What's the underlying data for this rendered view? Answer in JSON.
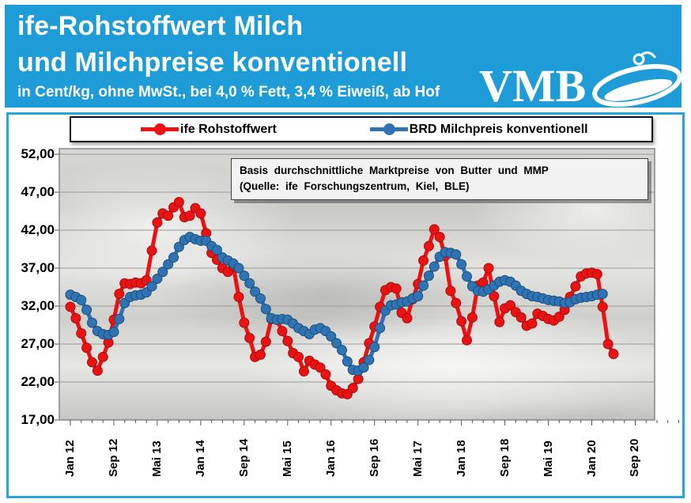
{
  "header": {
    "title_line1": "ife-Rohstoffwert Milch",
    "title_line2": "und Milchpreise konventionell",
    "subtitle": "in Cent/kg, ohne MwSt., bei 4,0 % Fett, 3,4 % Eiweiß, ab Hof",
    "logo_text": "VMB",
    "background_color": "#1E9CD8",
    "text_color": "#FFFFFF"
  },
  "legend": {
    "items": [
      {
        "label": "ife Rohstoffwert",
        "color": "#EE1111"
      },
      {
        "label": "BRD Milchpreis konventionell",
        "color": "#2E74B5"
      }
    ]
  },
  "annotation": {
    "line1": "Basis durchschnittliche Marktpreise von Butter und MMP",
    "line2": "(Quelle: ife Forschungszentrum, Kiel, BLE)"
  },
  "chart_data": {
    "type": "line",
    "title": "ife-Rohstoffwert Milch und Milchpreise konventionell",
    "unit": "Cent/kg",
    "x_start_month": "Jan 2012",
    "x_interval": "monthly",
    "x_tick_labels": [
      "Jan 12",
      "Sep 12",
      "Mai 13",
      "Jan 14",
      "Sep 14",
      "Mai 15",
      "Jan 16",
      "Sep 16",
      "Mai 17",
      "Jan 18",
      "Sep 18",
      "Mai 19",
      "Jan 20",
      "Sep 20"
    ],
    "x_tick_month_step": 8,
    "y_tick_labels": [
      "52,00",
      "47,00",
      "42,00",
      "37,00",
      "32,00",
      "27,00",
      "22,00",
      "17,00"
    ],
    "ylim": [
      17,
      52
    ],
    "grid": true,
    "legend_position": "top",
    "series": [
      {
        "name": "ife Rohstoffwert",
        "color": "#EE1111",
        "values": [
          31.9,
          30.4,
          28.4,
          26.5,
          24.6,
          23.5,
          25.3,
          27.2,
          30.2,
          33.6,
          35.0,
          34.9,
          35.1,
          35.0,
          35.4,
          39.3,
          43.0,
          44.2,
          43.9,
          45.0,
          45.7,
          43.7,
          43.9,
          44.9,
          44.2,
          41.6,
          39.0,
          38.1,
          37.0,
          36.5,
          37.3,
          33.2,
          29.8,
          27.8,
          25.3,
          25.6,
          27.3,
          30.3,
          30.2,
          28.7,
          27.4,
          25.8,
          25.3,
          23.4,
          24.8,
          24.3,
          23.9,
          23.0,
          21.5,
          20.9,
          20.5,
          20.4,
          21.2,
          22.4,
          24.6,
          27.1,
          29.3,
          31.9,
          34.1,
          34.5,
          34.3,
          31.1,
          30.4,
          32.9,
          34.9,
          38.0,
          39.9,
          42.1,
          41.1,
          38.6,
          34.0,
          32.4,
          30.0,
          27.5,
          30.5,
          34.7,
          35.1,
          37.0,
          33.3,
          29.9,
          31.7,
          32.1,
          31.2,
          30.5,
          29.4,
          29.7,
          31.0,
          30.7,
          30.3,
          30.1,
          30.6,
          31.5,
          33.2,
          34.6,
          35.9,
          36.3,
          36.4,
          36.2,
          31.9,
          27.0,
          25.7
        ]
      },
      {
        "name": "BRD Milchpreis konventionell",
        "color": "#2E74B5",
        "values": [
          33.5,
          33.2,
          32.8,
          31.5,
          29.8,
          28.7,
          28.3,
          28.2,
          28.6,
          30.3,
          32.4,
          33.2,
          33.4,
          33.5,
          33.8,
          34.6,
          35.6,
          36.5,
          37.5,
          38.4,
          39.8,
          40.7,
          41.1,
          40.8,
          40.6,
          40.6,
          39.9,
          39.4,
          38.4,
          38.0,
          37.6,
          37.0,
          36.0,
          35.0,
          33.9,
          33.0,
          31.6,
          30.4,
          30.2,
          30.3,
          30.2,
          29.7,
          29.1,
          28.7,
          28.3,
          28.9,
          29.1,
          28.7,
          28.0,
          27.1,
          26.2,
          24.7,
          23.6,
          23.5,
          23.9,
          24.9,
          26.6,
          29.1,
          31.4,
          32.1,
          32.2,
          32.5,
          32.6,
          33.0,
          33.3,
          34.7,
          36.0,
          37.2,
          38.5,
          39.1,
          39.0,
          38.8,
          37.5,
          35.9,
          34.6,
          34.0,
          33.9,
          34.2,
          34.7,
          35.2,
          35.4,
          35.2,
          34.7,
          34.0,
          33.6,
          33.3,
          33.2,
          33.0,
          32.8,
          32.7,
          32.6,
          32.4,
          32.5,
          32.9,
          33.1,
          33.2,
          33.3,
          33.5,
          33.6
        ]
      }
    ]
  },
  "colors": {
    "frame_blue": "#2BA3DC",
    "plot_border": "#7F7F7F",
    "gridline": "#999999",
    "annotation_bg": "#F2F2F2"
  }
}
